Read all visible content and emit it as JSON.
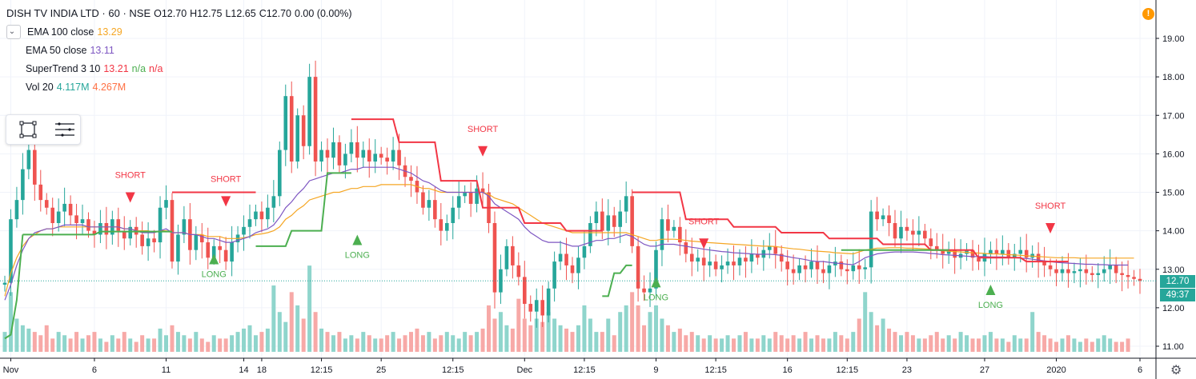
{
  "header": {
    "symbol": "DISH TV INDIA LTD · 60 · NSE",
    "open_label": "O",
    "open": "12.70",
    "high_label": "H",
    "high": "12.75",
    "low_label": "L",
    "low": "12.65",
    "close_label": "C",
    "close": "12.70",
    "change": "0.00 (0.00%)"
  },
  "indicators": {
    "ema100": {
      "name": "EMA 100 close",
      "value": "13.29",
      "color": "#f5a623"
    },
    "ema50": {
      "name": "EMA 50 close",
      "value": "13.11",
      "color": "#7e57c2"
    },
    "supertrend": {
      "name": "SuperTrend 3 10",
      "value": "13.21",
      "na1": "n/a",
      "na2": "n/a",
      "color": "#f23645"
    },
    "volume": {
      "name": "Vol 20",
      "value": "4.117M",
      "ma_value": "4.267M",
      "color": "#26a69a",
      "ma_color": "#ff7043"
    }
  },
  "toolbar": {
    "icons": [
      "rectangle-select-icon",
      "lines-menu-icon"
    ]
  },
  "warning_icon": "exclamation-icon",
  "settings_icon": "gear-icon",
  "last_price": {
    "value": "12.70",
    "countdown": "49:37",
    "color": "#26a69a"
  },
  "chart_data": {
    "type": "candlestick",
    "title": "DISH TV INDIA LTD · 60 · NSE",
    "ylim": [
      10.7,
      19.4
    ],
    "y_ticks": [
      "19.00",
      "18.00",
      "17.00",
      "16.00",
      "15.00",
      "14.00",
      "13.00",
      "12.00",
      "11.00"
    ],
    "y_tick_values": [
      19,
      18,
      17,
      16,
      15,
      14,
      13,
      12,
      11
    ],
    "x_ticks": [
      "Nov",
      "6",
      "11",
      "14",
      "18",
      "12:15",
      "25",
      "12:15",
      "Dec",
      "12:15",
      "9",
      "12:15",
      "16",
      "12:15",
      "23",
      "27",
      "2020",
      "6"
    ],
    "x_tick_index": [
      1,
      15,
      27,
      40,
      43,
      53,
      63,
      75,
      87,
      97,
      109,
      119,
      131,
      141,
      151,
      164,
      176,
      190
    ],
    "close_series": [
      12.65,
      14.3,
      14.8,
      15.6,
      16.1,
      15.2,
      14.8,
      14.6,
      14.2,
      14.5,
      14.7,
      14.4,
      14.2,
      14.3,
      14.0,
      13.9,
      14.2,
      13.9,
      14.3,
      14.0,
      13.8,
      14.1,
      13.9,
      13.6,
      13.8,
      13.7,
      14.6,
      14.8,
      13.2,
      13.9,
      14.3,
      13.5,
      13.9,
      13.7,
      13.3,
      13.6,
      13.5,
      13.2,
      13.7,
      13.9,
      14.1,
      14.3,
      14.5,
      14.3,
      14.6,
      14.9,
      16.1,
      17.5,
      15.8,
      17.0,
      16.2,
      18.0,
      15.8,
      16.1,
      15.9,
      16.3,
      15.7,
      16.0,
      16.3,
      15.9,
      16.1,
      15.8,
      16.0,
      15.9,
      15.8,
      16.1,
      15.7,
      15.4,
      15.3,
      15.0,
      14.6,
      14.8,
      14.3,
      14.0,
      14.2,
      14.6,
      14.9,
      15.0,
      14.7,
      15.1,
      15.0,
      14.2,
      12.4,
      13.0,
      13.6,
      13.1,
      12.8,
      12.1,
      11.9,
      12.2,
      11.8,
      12.5,
      13.2,
      13.4,
      13.1,
      12.9,
      13.3,
      13.6,
      14.2,
      14.5,
      14.0,
      14.4,
      14.1,
      14.5,
      14.9,
      13.6,
      12.5,
      12.4,
      12.5,
      13.5,
      14.3,
      14.0,
      14.1,
      13.7,
      13.4,
      13.2,
      13.3,
      13.1,
      13.2,
      13.0,
      13.1,
      13.2,
      13.1,
      13.3,
      13.2,
      13.4,
      13.3,
      13.5,
      13.6,
      13.4,
      13.2,
      13.0,
      12.9,
      13.1,
      13.0,
      13.2,
      13.0,
      12.9,
      13.1,
      13.2,
      13.0,
      12.95,
      13.1,
      13.0,
      13.05,
      14.5,
      14.3,
      14.4,
      14.2,
      13.8,
      14.1,
      14.0,
      13.9,
      14.0,
      13.8,
      13.6,
      13.5,
      13.4,
      13.5,
      13.3,
      13.4,
      13.5,
      13.3,
      13.2,
      13.4,
      13.5,
      13.4,
      13.5,
      13.3,
      13.4,
      13.5,
      13.3,
      13.4,
      13.2,
      13.1,
      13.0,
      12.9,
      13.0,
      12.9,
      12.95,
      13.0,
      12.9,
      12.85,
      12.9,
      13.0,
      13.1,
      12.9,
      12.85,
      12.8,
      12.75,
      12.7
    ],
    "volume_series": [
      0.3,
      0.9,
      0.5,
      0.4,
      0.35,
      0.3,
      0.25,
      0.4,
      0.2,
      0.3,
      0.25,
      0.2,
      0.3,
      0.2,
      0.25,
      0.3,
      0.2,
      0.15,
      0.25,
      0.2,
      0.3,
      0.2,
      0.15,
      0.25,
      0.2,
      0.2,
      0.35,
      0.25,
      0.4,
      0.3,
      0.25,
      0.2,
      0.3,
      0.2,
      0.15,
      0.25,
      0.2,
      0.2,
      0.25,
      0.3,
      0.35,
      0.4,
      0.25,
      0.3,
      0.35,
      1.0,
      0.6,
      0.45,
      0.9,
      0.7,
      0.5,
      1.3,
      0.6,
      0.35,
      0.3,
      0.25,
      0.3,
      0.2,
      0.25,
      0.2,
      0.3,
      0.25,
      0.2,
      0.2,
      0.25,
      0.3,
      0.2,
      0.25,
      0.3,
      0.35,
      0.25,
      0.3,
      0.2,
      0.25,
      0.3,
      0.25,
      0.2,
      0.3,
      0.25,
      0.3,
      0.35,
      0.7,
      0.5,
      0.6,
      0.4,
      0.35,
      0.8,
      0.5,
      0.4,
      0.5,
      0.45,
      0.6,
      0.5,
      0.4,
      0.35,
      0.3,
      0.4,
      0.7,
      0.5,
      0.3,
      0.3,
      0.5,
      0.25,
      0.6,
      0.7,
      0.9,
      0.7,
      0.4,
      0.6,
      0.7,
      0.5,
      0.4,
      0.3,
      0.35,
      0.25,
      0.3,
      0.25,
      0.2,
      0.25,
      0.2,
      0.2,
      0.25,
      0.2,
      0.25,
      0.3,
      0.2,
      0.2,
      0.25,
      0.2,
      0.3,
      0.25,
      0.2,
      0.25,
      0.2,
      0.3,
      0.2,
      0.25,
      0.2,
      0.2,
      0.3,
      0.25,
      0.2,
      0.3,
      0.5,
      0.9,
      0.6,
      0.4,
      0.5,
      0.35,
      0.3,
      0.25,
      0.3,
      0.25,
      0.2,
      0.2,
      0.25,
      0.3,
      0.2,
      0.25,
      0.2,
      0.3,
      0.25,
      0.2,
      0.2,
      0.25,
      0.3,
      0.2,
      0.2,
      0.15,
      0.25,
      0.2,
      0.2,
      0.6,
      0.3,
      0.25,
      0.2,
      0.15,
      0.2,
      0.25,
      0.2,
      0.15,
      0.2,
      0.15,
      0.2,
      0.25,
      0.2,
      0.15,
      0.15,
      0.2
    ],
    "ema100_series": [
      12.3,
      12.9,
      13.3,
      13.6,
      13.8,
      13.9,
      14.0,
      14.05,
      14.05,
      14.1,
      14.1,
      14.1,
      14.1,
      14.1,
      14.1,
      14.1,
      14.1,
      14.1,
      14.1,
      14.1,
      14.05,
      14.05,
      14.0,
      14.0,
      14.0,
      13.95,
      14.0,
      14.0,
      13.95,
      13.95,
      13.95,
      13.9,
      13.9,
      13.9,
      13.85,
      13.85,
      13.85,
      13.8,
      13.8,
      13.8,
      13.82,
      13.85,
      13.9,
      13.92,
      13.95,
      14.0,
      14.1,
      14.3,
      14.4,
      14.55,
      14.65,
      14.8,
      14.85,
      14.9,
      14.95,
      15.0,
      15.0,
      15.05,
      15.1,
      15.1,
      15.15,
      15.15,
      15.15,
      15.2,
      15.2,
      15.2,
      15.2,
      15.2,
      15.2,
      15.15,
      15.1,
      15.1,
      15.05,
      15.0,
      15.0,
      15.0,
      15.0,
      15.0,
      15.0,
      15.0,
      15.0,
      14.95,
      14.85,
      14.8,
      14.75,
      14.7,
      14.6,
      14.5,
      14.4,
      14.3,
      14.2,
      14.15,
      14.1,
      14.05,
      14.0,
      13.95,
      13.95,
      13.95,
      13.95,
      13.95,
      13.95,
      13.95,
      13.95,
      13.95,
      13.95,
      13.9,
      13.85,
      13.8,
      13.75,
      13.75,
      13.78,
      13.78,
      13.78,
      13.77,
      13.75,
      13.73,
      13.72,
      13.7,
      13.69,
      13.68,
      13.67,
      13.66,
      13.65,
      13.64,
      13.63,
      13.62,
      13.61,
      13.6,
      13.6,
      13.59,
      13.57,
      13.55,
      13.53,
      13.52,
      13.5,
      13.48,
      13.47,
      13.46,
      13.45,
      13.43,
      13.42,
      13.41,
      13.4,
      13.45,
      13.5,
      13.52,
      13.55,
      13.55,
      13.56,
      13.56,
      13.56,
      13.55,
      13.55,
      13.54,
      13.53,
      13.52,
      13.5,
      13.48,
      13.47,
      13.46,
      13.45,
      13.44,
      13.43,
      13.42,
      13.41,
      13.4,
      13.4,
      13.39,
      13.38,
      13.37,
      13.36,
      13.35,
      13.34,
      13.33,
      13.32,
      13.31,
      13.3,
      13.3,
      13.3,
      13.3,
      13.29,
      13.29,
      13.29,
      13.29,
      13.29,
      13.29,
      13.29,
      13.29,
      13.29,
      13.29
    ],
    "ema50_series": [
      12.2,
      12.6,
      13.1,
      13.5,
      13.8,
      13.95,
      14.0,
      14.05,
      14.05,
      14.1,
      14.15,
      14.15,
      14.15,
      14.15,
      14.1,
      14.1,
      14.1,
      14.1,
      14.1,
      14.1,
      14.05,
      14.05,
      14.0,
      13.95,
      13.95,
      13.95,
      14.0,
      14.05,
      13.95,
      13.95,
      13.95,
      13.9,
      13.9,
      13.85,
      13.8,
      13.8,
      13.75,
      13.7,
      13.7,
      13.75,
      13.8,
      13.85,
      13.95,
      14.0,
      14.05,
      14.15,
      14.35,
      14.6,
      14.75,
      14.95,
      15.1,
      15.3,
      15.35,
      15.4,
      15.45,
      15.5,
      15.5,
      15.55,
      15.6,
      15.6,
      15.65,
      15.65,
      15.65,
      15.65,
      15.65,
      15.65,
      15.6,
      15.55,
      15.5,
      15.4,
      15.3,
      15.25,
      15.15,
      15.05,
      15.0,
      15.0,
      15.0,
      15.0,
      15.0,
      15.0,
      15.0,
      14.9,
      14.7,
      14.6,
      14.5,
      14.4,
      14.3,
      14.1,
      13.95,
      13.85,
      13.75,
      13.7,
      13.7,
      13.7,
      13.65,
      13.6,
      13.6,
      13.65,
      13.7,
      13.75,
      13.75,
      13.8,
      13.8,
      13.85,
      13.9,
      13.85,
      13.75,
      13.65,
      13.6,
      13.6,
      13.65,
      13.65,
      13.65,
      13.62,
      13.6,
      13.57,
      13.55,
      13.52,
      13.5,
      13.48,
      13.46,
      13.45,
      13.43,
      13.42,
      13.41,
      13.4,
      13.39,
      13.39,
      13.39,
      13.38,
      13.36,
      13.33,
      13.3,
      13.28,
      13.25,
      13.22,
      13.2,
      13.2,
      13.18,
      13.16,
      13.15,
      13.13,
      13.12,
      13.2,
      13.3,
      13.35,
      13.4,
      13.42,
      13.44,
      13.45,
      13.45,
      13.45,
      13.45,
      13.44,
      13.43,
      13.41,
      13.4,
      13.38,
      13.37,
      13.36,
      13.35,
      13.34,
      13.33,
      13.33,
      13.33,
      13.32,
      13.32,
      13.32,
      13.31,
      13.3,
      13.29,
      13.28,
      13.26,
      13.24,
      13.22,
      13.2,
      13.18,
      13.17,
      13.16,
      13.15,
      13.14,
      13.13,
      13.13,
      13.12,
      13.12,
      13.11,
      13.11,
      13.11,
      13.11
    ],
    "supertrend_segments": [
      {
        "dir": "up",
        "from": 0,
        "to": 3,
        "values": [
          11.2,
          11.3,
          12.2,
          13.9
        ]
      },
      {
        "dir": "up",
        "from": 3,
        "to": 28,
        "values": [
          13.9,
          13.98
        ]
      },
      {
        "dir": "down",
        "from": 28,
        "to": 42,
        "values": [
          15.0
        ]
      },
      {
        "dir": "up",
        "from": 42,
        "to": 58,
        "values": [
          13.6,
          14.0,
          15.5
        ]
      },
      {
        "dir": "down",
        "from": 58,
        "to": 100,
        "values": [
          16.9,
          16.3,
          15.3,
          14.6,
          14.2,
          14.0
        ]
      },
      {
        "dir": "up",
        "from": 100,
        "to": 105,
        "values": [
          12.3,
          12.9,
          13.1
        ]
      },
      {
        "dir": "down",
        "from": 105,
        "to": 178,
        "values": [
          15.0,
          14.3,
          14.1,
          13.95,
          13.8,
          13.65,
          13.5,
          13.3,
          13.2
        ]
      },
      {
        "dir": "up",
        "from": 140,
        "to": 158,
        "values": [
          13.5
        ]
      }
    ],
    "signals": [
      {
        "label": "SHORT",
        "type": "short",
        "index": 21,
        "value": 15.0
      },
      {
        "label": "SHORT",
        "type": "short",
        "index": 37,
        "value": 14.9
      },
      {
        "label": "LONG",
        "type": "long",
        "index": 35,
        "value": 13.4
      },
      {
        "label": "LONG",
        "type": "long",
        "index": 59,
        "value": 13.9
      },
      {
        "label": "SHORT",
        "type": "short",
        "index": 80,
        "value": 16.2
      },
      {
        "label": "LONG",
        "type": "long",
        "index": 109,
        "value": 12.8
      },
      {
        "label": "SHORT",
        "type": "short",
        "index": 117,
        "value": 13.8
      },
      {
        "label": "LONG",
        "type": "long",
        "index": 165,
        "value": 12.6
      },
      {
        "label": "SHORT",
        "type": "short",
        "index": 175,
        "value": 14.2
      }
    ],
    "colors": {
      "up": "#26a69a",
      "down": "#ef5350",
      "vol_up": "#8fd5cc",
      "vol_down": "#f7a9a7",
      "st_up": "#4caf50",
      "st_down": "#f23645",
      "ema100": "#f5a623",
      "ema50": "#7e57c2"
    }
  }
}
